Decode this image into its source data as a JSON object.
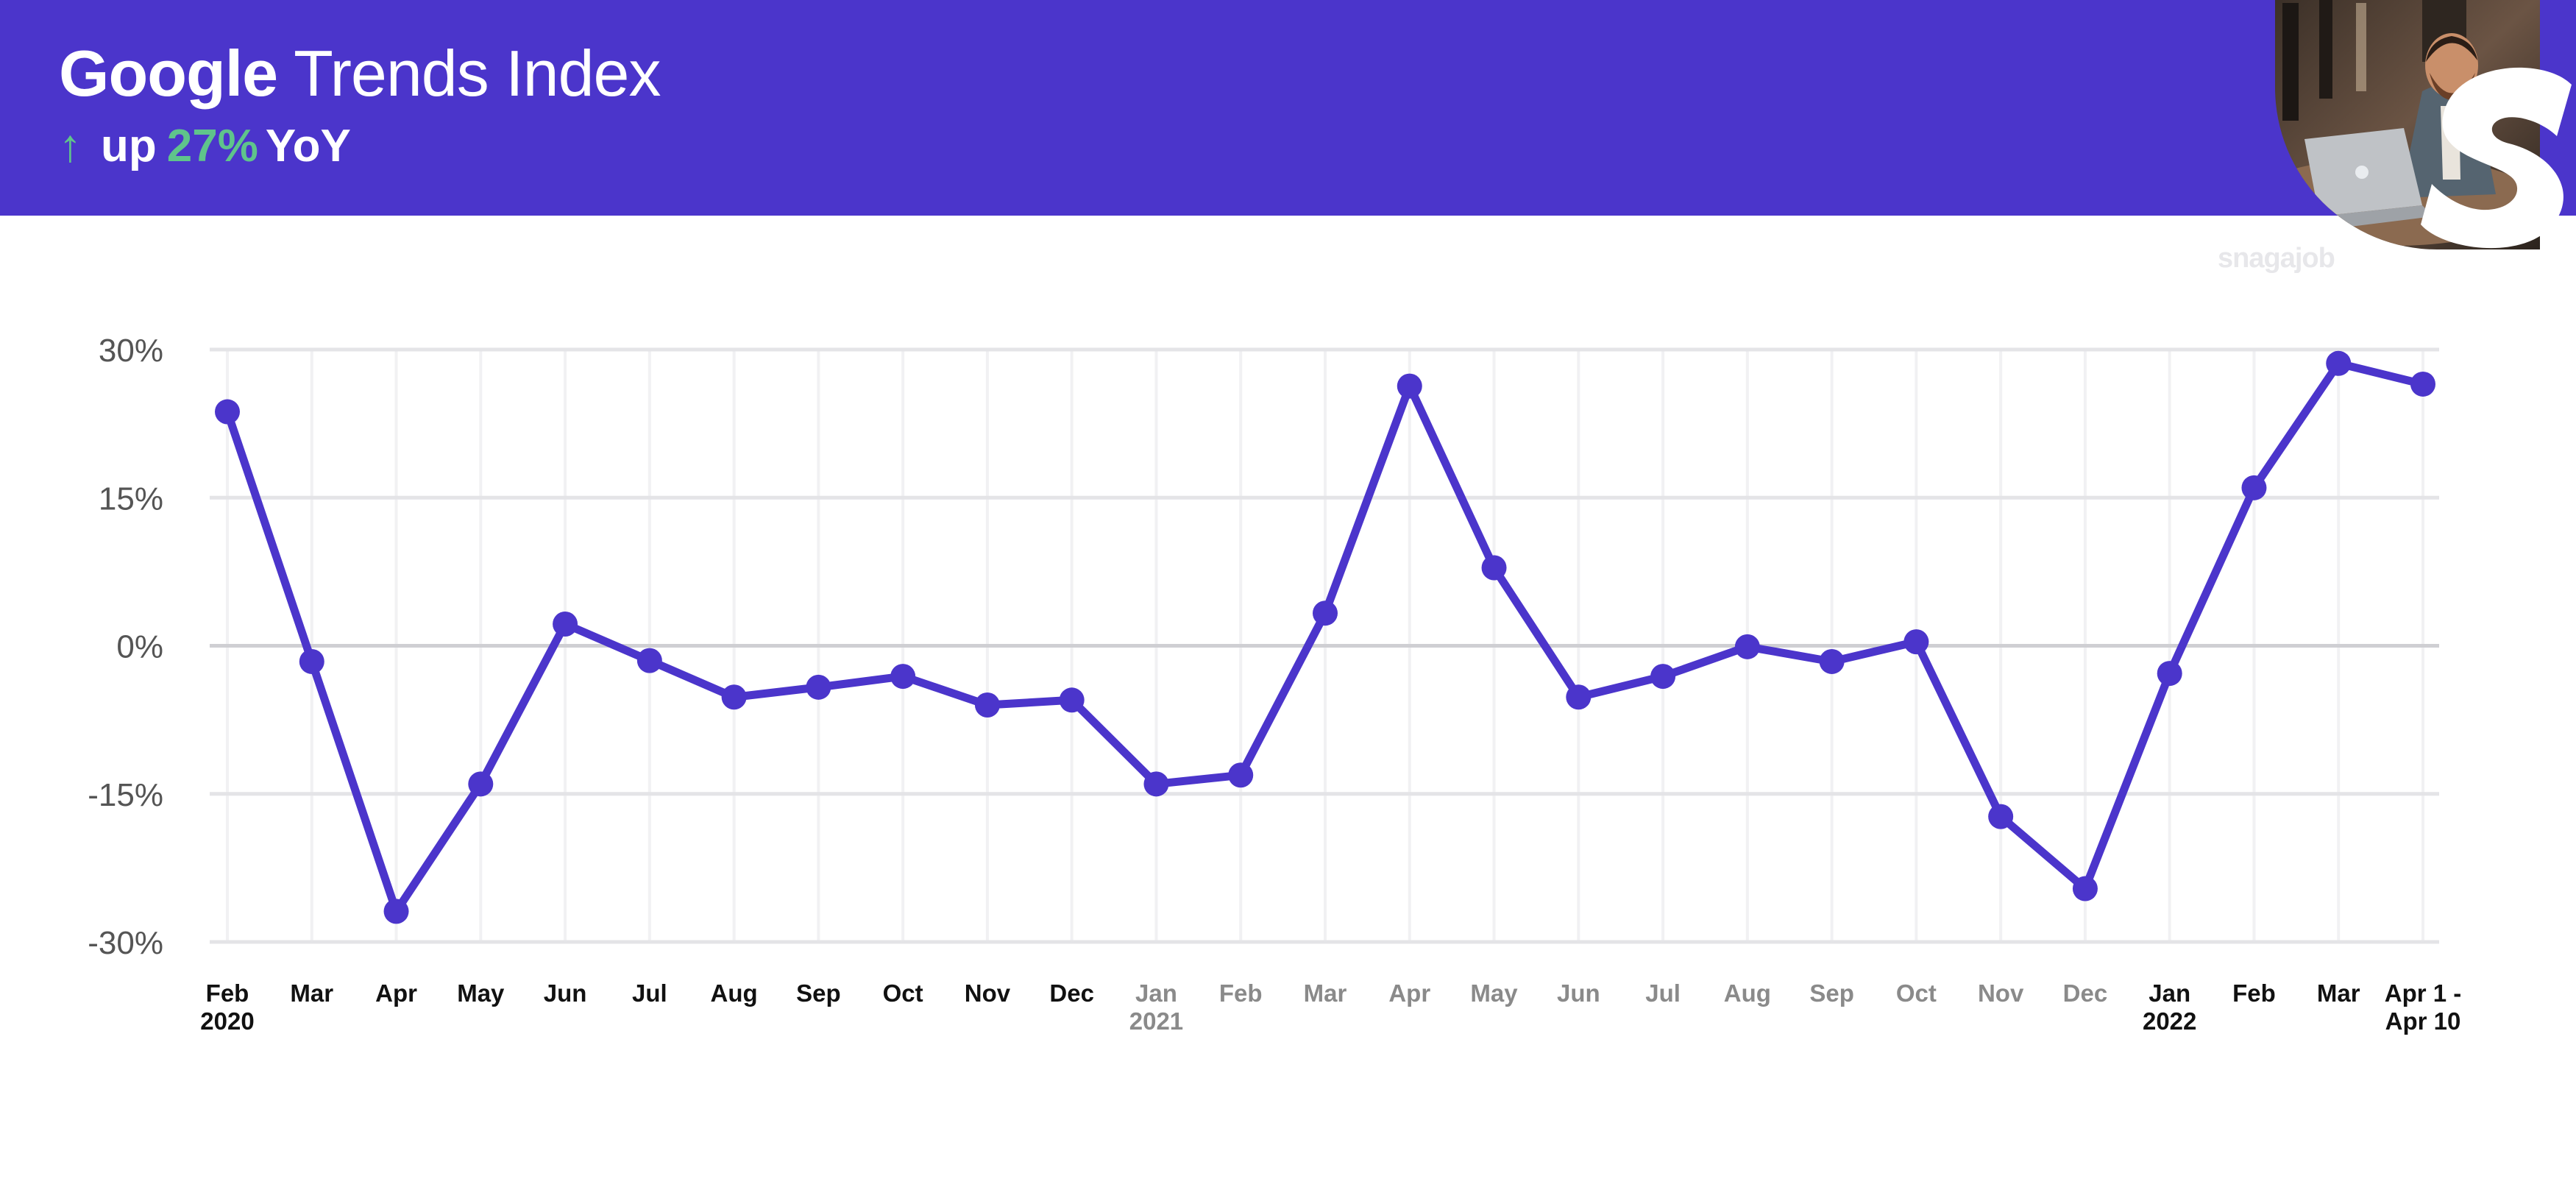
{
  "header": {
    "title_brand": "Google",
    "title_rest": "Trends Index",
    "subtitle_arrow": "↑",
    "subtitle_prefix": "up",
    "subtitle_value": "27%",
    "subtitle_suffix": "YoY",
    "watermark": "snagajob"
  },
  "colors": {
    "header_bg": "#4b35cb",
    "line": "#4b35cb",
    "accent_green": "#5fc48b",
    "label_dark": "#111111",
    "label_muted": "#8a8a8a"
  },
  "chart_data": {
    "type": "line",
    "title": "",
    "xlabel": "",
    "ylabel": "",
    "ylim": [
      -30,
      30
    ],
    "yticks": [
      30,
      15,
      0,
      -15,
      -30
    ],
    "ytick_labels": [
      "30%",
      "15%",
      "0%",
      "-15%",
      "-30%"
    ],
    "grid": true,
    "categories": [
      {
        "label": "Feb",
        "sub": "2020",
        "muted": false
      },
      {
        "label": "Mar",
        "sub": "",
        "muted": false
      },
      {
        "label": "Apr",
        "sub": "",
        "muted": false
      },
      {
        "label": "May",
        "sub": "",
        "muted": false
      },
      {
        "label": "Jun",
        "sub": "",
        "muted": false
      },
      {
        "label": "Jul",
        "sub": "",
        "muted": false
      },
      {
        "label": "Aug",
        "sub": "",
        "muted": false
      },
      {
        "label": "Sep",
        "sub": "",
        "muted": false
      },
      {
        "label": "Oct",
        "sub": "",
        "muted": false
      },
      {
        "label": "Nov",
        "sub": "",
        "muted": false
      },
      {
        "label": "Dec",
        "sub": "",
        "muted": false
      },
      {
        "label": "Jan",
        "sub": "2021",
        "muted": true
      },
      {
        "label": "Feb",
        "sub": "",
        "muted": true
      },
      {
        "label": "Mar",
        "sub": "",
        "muted": true
      },
      {
        "label": "Apr",
        "sub": "",
        "muted": true
      },
      {
        "label": "May",
        "sub": "",
        "muted": true
      },
      {
        "label": "Jun",
        "sub": "",
        "muted": true
      },
      {
        "label": "Jul",
        "sub": "",
        "muted": true
      },
      {
        "label": "Aug",
        "sub": "",
        "muted": true
      },
      {
        "label": "Sep",
        "sub": "",
        "muted": true
      },
      {
        "label": "Oct",
        "sub": "",
        "muted": true
      },
      {
        "label": "Nov",
        "sub": "",
        "muted": true
      },
      {
        "label": "Dec",
        "sub": "",
        "muted": true
      },
      {
        "label": "Jan",
        "sub": "2022",
        "muted": false
      },
      {
        "label": "Feb",
        "sub": "",
        "muted": false
      },
      {
        "label": "Mar",
        "sub": "",
        "muted": false
      },
      {
        "label": "Apr 1 -",
        "sub": "Apr 10",
        "muted": false
      }
    ],
    "series": [
      {
        "values": [
          23.7,
          -1.6,
          -26.9,
          -14.0,
          2.2,
          -1.5,
          -5.2,
          -4.2,
          -3.1,
          -6.0,
          -5.5,
          -14.0,
          -13.1,
          3.3,
          26.3,
          7.9,
          -5.2,
          -3.1,
          -0.1,
          -1.6,
          0.4,
          -17.3,
          -24.6,
          -2.8,
          16.0,
          28.6,
          26.5
        ]
      }
    ]
  }
}
